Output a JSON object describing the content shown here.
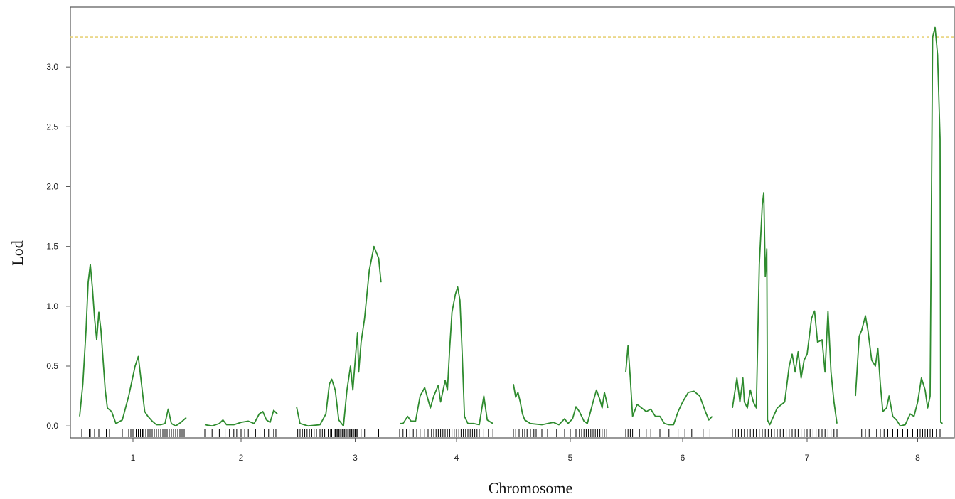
{
  "chart_data": {
    "type": "line",
    "xlabel": "Chromosome",
    "ylabel": "Lod",
    "ylim": [
      -0.1,
      3.5
    ],
    "y_ticks": [
      "0.0",
      "0.5",
      "1.0",
      "1.5",
      "2.0",
      "2.5",
      "3.0"
    ],
    "threshold": 3.25,
    "colors": {
      "line": "#2e8b2e",
      "threshold": "#e8d27a",
      "axis": "#555555",
      "marker": "#000000"
    },
    "chromosomes": [
      {
        "name": "1",
        "points": [
          [
            0,
            0.08
          ],
          [
            0.03,
            0.35
          ],
          [
            0.06,
            0.8
          ],
          [
            0.08,
            1.2
          ],
          [
            0.1,
            1.35
          ],
          [
            0.12,
            1.15
          ],
          [
            0.14,
            0.9
          ],
          [
            0.16,
            0.72
          ],
          [
            0.18,
            0.95
          ],
          [
            0.2,
            0.8
          ],
          [
            0.22,
            0.55
          ],
          [
            0.24,
            0.3
          ],
          [
            0.26,
            0.15
          ],
          [
            0.3,
            0.12
          ],
          [
            0.34,
            0.02
          ],
          [
            0.4,
            0.05
          ],
          [
            0.46,
            0.25
          ],
          [
            0.52,
            0.5
          ],
          [
            0.55,
            0.58
          ],
          [
            0.58,
            0.35
          ],
          [
            0.61,
            0.12
          ],
          [
            0.64,
            0.08
          ],
          [
            0.68,
            0.04
          ],
          [
            0.72,
            0.01
          ],
          [
            0.76,
            0.01
          ],
          [
            0.8,
            0.02
          ],
          [
            0.83,
            0.14
          ],
          [
            0.86,
            0.02
          ],
          [
            0.9,
            0.0
          ],
          [
            0.95,
            0.03
          ],
          [
            1,
            0.07
          ]
        ],
        "markers": [
          0.02,
          0.05,
          0.07,
          0.09,
          0.1,
          0.14,
          0.18,
          0.25,
          0.28,
          0.4,
          0.46,
          0.48,
          0.5,
          0.53,
          0.55,
          0.57,
          0.59,
          0.6,
          0.62,
          0.64,
          0.66,
          0.68,
          0.7,
          0.72,
          0.74,
          0.76,
          0.78,
          0.8,
          0.82,
          0.84,
          0.86,
          0.88,
          0.9,
          0.92,
          0.94,
          0.96,
          0.98
        ]
      },
      {
        "name": "2",
        "points": [
          [
            0,
            0.01
          ],
          [
            0.1,
            0.0
          ],
          [
            0.2,
            0.02
          ],
          [
            0.25,
            0.05
          ],
          [
            0.3,
            0.01
          ],
          [
            0.4,
            0.01
          ],
          [
            0.5,
            0.03
          ],
          [
            0.6,
            0.04
          ],
          [
            0.68,
            0.02
          ],
          [
            0.75,
            0.1
          ],
          [
            0.8,
            0.12
          ],
          [
            0.85,
            0.05
          ],
          [
            0.9,
            0.03
          ],
          [
            0.95,
            0.13
          ],
          [
            1,
            0.1
          ]
        ],
        "markers": [
          0.0,
          0.1,
          0.2,
          0.28,
          0.34,
          0.4,
          0.44,
          0.5,
          0.55,
          0.6,
          0.7,
          0.76,
          0.82,
          0.88,
          0.95,
          0.98
        ]
      },
      {
        "name": "3",
        "points": [
          [
            0,
            0.16
          ],
          [
            0.03,
            0.02
          ],
          [
            0.1,
            0.0
          ],
          [
            0.2,
            0.01
          ],
          [
            0.25,
            0.1
          ],
          [
            0.28,
            0.35
          ],
          [
            0.3,
            0.39
          ],
          [
            0.33,
            0.3
          ],
          [
            0.36,
            0.05
          ],
          [
            0.4,
            0.0
          ],
          [
            0.43,
            0.3
          ],
          [
            0.46,
            0.5
          ],
          [
            0.48,
            0.3
          ],
          [
            0.5,
            0.55
          ],
          [
            0.52,
            0.78
          ],
          [
            0.53,
            0.45
          ],
          [
            0.55,
            0.7
          ],
          [
            0.58,
            0.9
          ],
          [
            0.62,
            1.3
          ],
          [
            0.66,
            1.5
          ],
          [
            0.7,
            1.4
          ],
          [
            0.72,
            1.2
          ]
        ],
        "markers": [
          0.01,
          0.03,
          0.05,
          0.07,
          0.09,
          0.11,
          0.13,
          0.15,
          0.17,
          0.2,
          0.22,
          0.24,
          0.27,
          0.29,
          0.3,
          0.32,
          0.33,
          0.34,
          0.35,
          0.36,
          0.37,
          0.38,
          0.39,
          0.4,
          0.41,
          0.42,
          0.43,
          0.44,
          0.45,
          0.46,
          0.47,
          0.48,
          0.49,
          0.5,
          0.51,
          0.52,
          0.55,
          0.58,
          0.7
        ]
      },
      {
        "name": "4",
        "points": [
          [
            0,
            0.02
          ],
          [
            0.03,
            0.02
          ],
          [
            0.07,
            0.08
          ],
          [
            0.1,
            0.04
          ],
          [
            0.14,
            0.04
          ],
          [
            0.18,
            0.25
          ],
          [
            0.22,
            0.32
          ],
          [
            0.27,
            0.15
          ],
          [
            0.3,
            0.25
          ],
          [
            0.34,
            0.34
          ],
          [
            0.36,
            0.2
          ],
          [
            0.4,
            0.38
          ],
          [
            0.42,
            0.3
          ],
          [
            0.44,
            0.65
          ],
          [
            0.46,
            0.95
          ],
          [
            0.49,
            1.1
          ],
          [
            0.51,
            1.16
          ],
          [
            0.53,
            1.05
          ],
          [
            0.55,
            0.6
          ],
          [
            0.57,
            0.08
          ],
          [
            0.6,
            0.02
          ],
          [
            0.65,
            0.02
          ],
          [
            0.7,
            0.01
          ],
          [
            0.74,
            0.25
          ],
          [
            0.77,
            0.05
          ],
          [
            0.82,
            0.02
          ]
        ],
        "markers": [
          0.0,
          0.03,
          0.06,
          0.09,
          0.12,
          0.15,
          0.18,
          0.22,
          0.25,
          0.28,
          0.3,
          0.32,
          0.34,
          0.36,
          0.38,
          0.4,
          0.42,
          0.44,
          0.46,
          0.48,
          0.5,
          0.52,
          0.54,
          0.56,
          0.58,
          0.6,
          0.62,
          0.64,
          0.66,
          0.68,
          0.7,
          0.74,
          0.78,
          0.82
        ]
      },
      {
        "name": "5",
        "points": [
          [
            0,
            0.35
          ],
          [
            0.02,
            0.24
          ],
          [
            0.04,
            0.28
          ],
          [
            0.06,
            0.2
          ],
          [
            0.08,
            0.1
          ],
          [
            0.1,
            0.05
          ],
          [
            0.15,
            0.02
          ],
          [
            0.25,
            0.01
          ],
          [
            0.35,
            0.03
          ],
          [
            0.4,
            0.01
          ],
          [
            0.45,
            0.06
          ],
          [
            0.48,
            0.02
          ],
          [
            0.52,
            0.06
          ],
          [
            0.55,
            0.16
          ],
          [
            0.58,
            0.12
          ],
          [
            0.62,
            0.04
          ],
          [
            0.65,
            0.02
          ],
          [
            0.7,
            0.2
          ],
          [
            0.73,
            0.3
          ],
          [
            0.76,
            0.22
          ],
          [
            0.78,
            0.15
          ],
          [
            0.8,
            0.28
          ],
          [
            0.82,
            0.2
          ],
          [
            0.83,
            0.15
          ]
        ],
        "markers": [
          0.0,
          0.02,
          0.05,
          0.08,
          0.1,
          0.12,
          0.15,
          0.18,
          0.2,
          0.25,
          0.3,
          0.38,
          0.45,
          0.5,
          0.55,
          0.58,
          0.6,
          0.62,
          0.64,
          0.66,
          0.68,
          0.7,
          0.72,
          0.74,
          0.76,
          0.78,
          0.8,
          0.82
        ]
      },
      {
        "name": "6",
        "points": [
          [
            0,
            0.45
          ],
          [
            0.02,
            0.67
          ],
          [
            0.04,
            0.4
          ],
          [
            0.06,
            0.08
          ],
          [
            0.1,
            0.18
          ],
          [
            0.14,
            0.15
          ],
          [
            0.18,
            0.12
          ],
          [
            0.22,
            0.14
          ],
          [
            0.26,
            0.08
          ],
          [
            0.3,
            0.08
          ],
          [
            0.34,
            0.02
          ],
          [
            0.38,
            0.01
          ],
          [
            0.42,
            0.01
          ],
          [
            0.46,
            0.12
          ],
          [
            0.5,
            0.2
          ],
          [
            0.55,
            0.28
          ],
          [
            0.6,
            0.29
          ],
          [
            0.65,
            0.25
          ],
          [
            0.7,
            0.12
          ],
          [
            0.73,
            0.05
          ],
          [
            0.76,
            0.08
          ]
        ],
        "markers": [
          0.0,
          0.02,
          0.04,
          0.06,
          0.12,
          0.18,
          0.22,
          0.3,
          0.38,
          0.46,
          0.52,
          0.58,
          0.68,
          0.74
        ]
      },
      {
        "name": "7",
        "points": [
          [
            0,
            0.15
          ],
          [
            0.03,
            0.4
          ],
          [
            0.05,
            0.2
          ],
          [
            0.07,
            0.4
          ],
          [
            0.08,
            0.2
          ],
          [
            0.1,
            0.15
          ],
          [
            0.12,
            0.3
          ],
          [
            0.14,
            0.2
          ],
          [
            0.16,
            0.15
          ],
          [
            0.18,
            1.35
          ],
          [
            0.2,
            1.85
          ],
          [
            0.21,
            1.95
          ],
          [
            0.22,
            1.25
          ],
          [
            0.23,
            1.48
          ],
          [
            0.235,
            0.05
          ],
          [
            0.25,
            0.01
          ],
          [
            0.3,
            0.15
          ],
          [
            0.35,
            0.2
          ],
          [
            0.38,
            0.5
          ],
          [
            0.4,
            0.6
          ],
          [
            0.42,
            0.45
          ],
          [
            0.44,
            0.62
          ],
          [
            0.46,
            0.4
          ],
          [
            0.48,
            0.55
          ],
          [
            0.5,
            0.6
          ],
          [
            0.53,
            0.9
          ],
          [
            0.55,
            0.96
          ],
          [
            0.57,
            0.7
          ],
          [
            0.6,
            0.72
          ],
          [
            0.62,
            0.45
          ],
          [
            0.64,
            0.96
          ],
          [
            0.66,
            0.45
          ],
          [
            0.68,
            0.2
          ],
          [
            0.7,
            0.02
          ]
        ],
        "markers": [
          0.0,
          0.02,
          0.04,
          0.06,
          0.08,
          0.1,
          0.12,
          0.14,
          0.16,
          0.18,
          0.2,
          0.22,
          0.24,
          0.26,
          0.28,
          0.3,
          0.32,
          0.34,
          0.36,
          0.38,
          0.4,
          0.42,
          0.44,
          0.46,
          0.48,
          0.5,
          0.52,
          0.54,
          0.56,
          0.58,
          0.6,
          0.62,
          0.64,
          0.66,
          0.68,
          0.7
        ]
      },
      {
        "name": "8",
        "points": [
          [
            0,
            0.25
          ],
          [
            0.03,
            0.75
          ],
          [
            0.05,
            0.8
          ],
          [
            0.08,
            0.92
          ],
          [
            0.1,
            0.8
          ],
          [
            0.13,
            0.55
          ],
          [
            0.16,
            0.5
          ],
          [
            0.18,
            0.65
          ],
          [
            0.2,
            0.35
          ],
          [
            0.22,
            0.12
          ],
          [
            0.25,
            0.15
          ],
          [
            0.27,
            0.25
          ],
          [
            0.3,
            0.08
          ],
          [
            0.33,
            0.05
          ],
          [
            0.36,
            0.0
          ],
          [
            0.4,
            0.01
          ],
          [
            0.44,
            0.1
          ],
          [
            0.47,
            0.08
          ],
          [
            0.5,
            0.2
          ],
          [
            0.53,
            0.4
          ],
          [
            0.56,
            0.3
          ],
          [
            0.58,
            0.15
          ],
          [
            0.6,
            0.25
          ],
          [
            0.62,
            3.25
          ],
          [
            0.64,
            3.33
          ],
          [
            0.66,
            3.1
          ],
          [
            0.68,
            2.4
          ],
          [
            0.685,
            0.03
          ],
          [
            0.7,
            0.02
          ]
        ],
        "markers": [
          0.02,
          0.05,
          0.08,
          0.11,
          0.14,
          0.17,
          0.2,
          0.23,
          0.26,
          0.3,
          0.34,
          0.38,
          0.42,
          0.46,
          0.5,
          0.52,
          0.54,
          0.56,
          0.58,
          0.6,
          0.62,
          0.65,
          0.68
        ]
      }
    ]
  }
}
